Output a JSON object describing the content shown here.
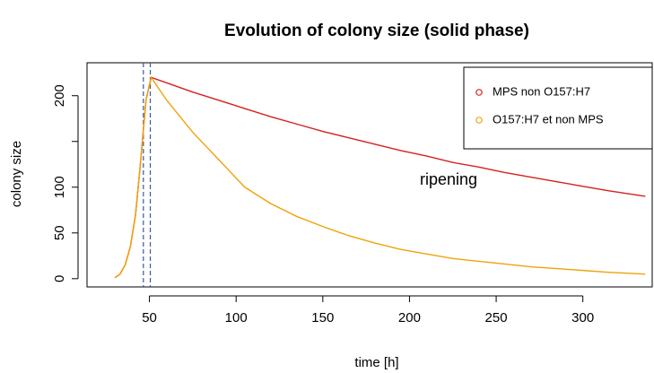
{
  "chart_data": {
    "type": "line",
    "title": "Evolution of colony size (solid phase)",
    "x_label": "time [h]",
    "y_label": "colony size",
    "x": [
      30,
      33,
      36,
      39,
      42,
      45,
      48,
      51,
      60,
      75,
      90,
      105,
      120,
      135,
      150,
      165,
      180,
      195,
      210,
      225,
      240,
      255,
      270,
      285,
      300,
      315,
      336
    ],
    "series": [
      {
        "name": "MPS non O157:H7",
        "color": "#d62020",
        "values": [
          1,
          5,
          15,
          35,
          70,
          130,
          195,
          220,
          214,
          204,
          195,
          186,
          177,
          169,
          161,
          154,
          147,
          140,
          134,
          127,
          122,
          116,
          111,
          106,
          101,
          96,
          90
        ]
      },
      {
        "name": "O157:H7 et non MPS",
        "color": "#f0a30a",
        "values": [
          1,
          5,
          15,
          35,
          70,
          130,
          195,
          220,
          195,
          160,
          130,
          100,
          82,
          68,
          57,
          47,
          39,
          32,
          27,
          22,
          19,
          16,
          13,
          11,
          9,
          7,
          5
        ]
      }
    ],
    "vlines": [
      46.5,
      50.5
    ],
    "vline_color": "#3a55a8",
    "annotation": "ripening",
    "xlim": [
      14,
      340
    ],
    "ylim": [
      -9,
      236
    ],
    "xticks": [
      50,
      100,
      150,
      200,
      250,
      300
    ],
    "yticks": [
      0,
      50,
      100,
      {
        "value": 150,
        "label": null
      },
      200
    ],
    "legend": "top-right"
  }
}
